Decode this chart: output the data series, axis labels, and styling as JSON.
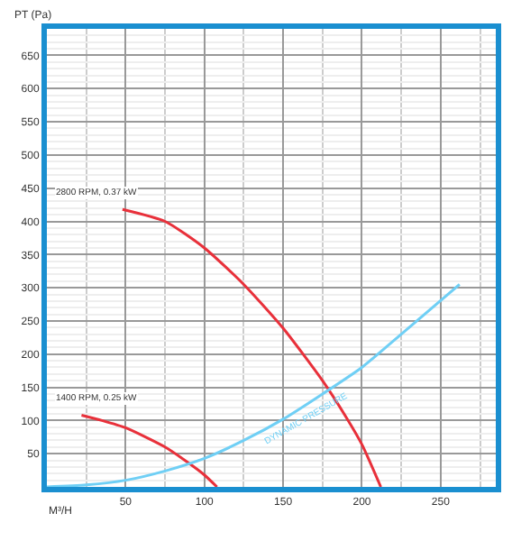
{
  "chart_data": {
    "type": "line",
    "xlabel": "M³/H",
    "ylabel": "PT (Pa)",
    "xlim": [
      0,
      285
    ],
    "ylim": [
      0,
      690
    ],
    "xticks": [
      50,
      100,
      150,
      200,
      250
    ],
    "yticks": [
      50,
      100,
      150,
      200,
      250,
      300,
      350,
      400,
      450,
      500,
      550,
      600,
      650
    ],
    "grid": true,
    "legend": false,
    "marker": "none",
    "line_style": "solid",
    "series": [
      {
        "name": "2800 RPM, 0.37 kW",
        "color": "#e8303a",
        "x": [
          48,
          75,
          100,
          125,
          150,
          175,
          190,
          200,
          212
        ],
        "values": [
          418,
          400,
          360,
          305,
          239,
          160,
          105,
          64,
          0
        ]
      },
      {
        "name": "1400 RPM, 0.25 kW",
        "color": "#e8303a",
        "x": [
          22,
          35,
          50,
          75,
          90,
          100,
          108
        ],
        "values": [
          108,
          100,
          89,
          60,
          36,
          18,
          0
        ]
      },
      {
        "name": "DYNAMIC PRESSURE",
        "color": "#6fcff5",
        "x": [
          0,
          25,
          50,
          75,
          100,
          125,
          150,
          175,
          200,
          225,
          262
        ],
        "values": [
          0,
          3,
          10,
          24,
          43,
          70,
          102,
          140,
          180,
          230,
          305
        ]
      }
    ]
  }
}
